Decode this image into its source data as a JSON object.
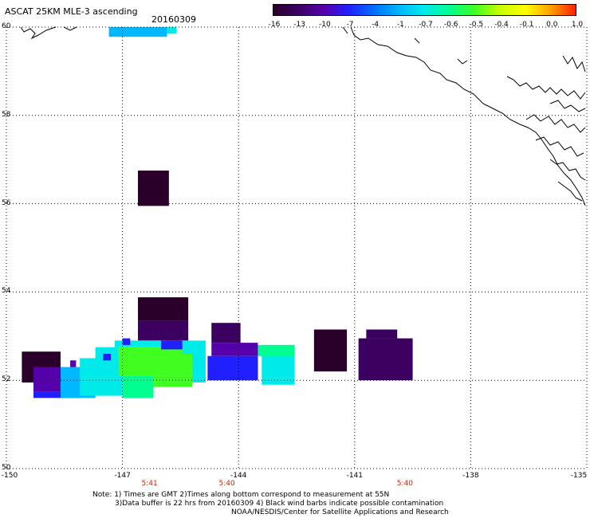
{
  "header": {
    "title": "ASCAT 25KM MLE-3 ascending",
    "date": "20160309"
  },
  "colorbar": {
    "labels": [
      "-16",
      "-13",
      "-10",
      "-7",
      "-4",
      "-1",
      "-0.7",
      "-0.6",
      "-0.5",
      "-0.4",
      "-0.1",
      "0.0",
      "1.0"
    ],
    "colors": [
      "#2a002a",
      "#3c0060",
      "#5500aa",
      "#2020ff",
      "#0070ff",
      "#00b8ff",
      "#00eaea",
      "#00ff90",
      "#40ff20",
      "#c8ff00",
      "#ffff00",
      "#ffa000",
      "#ff2000"
    ]
  },
  "axes": {
    "lat_ticks": [
      "60",
      "58",
      "56",
      "54",
      "52",
      "50"
    ],
    "lon_ticks": [
      "-150",
      "-147",
      "-144",
      "-141",
      "-138",
      "-135"
    ],
    "times": [
      {
        "text": "5:41",
        "lon": -146.3
      },
      {
        "text": "5:40",
        "lon": -144.3
      },
      {
        "text": "5:40",
        "lon": -139.7
      }
    ]
  },
  "notes": {
    "line1": "Note: 1) Times are GMT 2)Times along bottom correspond to measurement at 55N",
    "line2": "3)Data buffer is 22 hrs from 20160309 4) Black wind barbs indicate possible contamination",
    "line3": "NOAA/NESDIS/Center for Satellite Applications and Research"
  },
  "map_data": {
    "extent": {
      "lon_min": -150,
      "lon_max": -135,
      "lat_min": 50,
      "lat_max": 60
    },
    "cells_note": "MLE values per grid cell, coordinates in degrees",
    "cells": [
      {
        "lon0": -147.35,
        "lon1": -145.85,
        "lat0": 59.78,
        "lat1": 60.0,
        "color": "#00b8ff"
      },
      {
        "lon0": -145.85,
        "lon1": -145.6,
        "lat0": 59.85,
        "lat1": 60.0,
        "color": "#00eaea"
      },
      {
        "lon0": -146.6,
        "lon1": -145.8,
        "lat0": 55.95,
        "lat1": 56.75,
        "color": "#2a002a"
      },
      {
        "lon0": -146.6,
        "lon1": -145.3,
        "lat0": 53.35,
        "lat1": 53.88,
        "color": "#2a002a"
      },
      {
        "lon0": -146.6,
        "lon1": -145.3,
        "lat0": 52.9,
        "lat1": 53.35,
        "color": "#3c0060"
      },
      {
        "lon0": -144.7,
        "lon1": -143.95,
        "lat0": 52.85,
        "lat1": 53.3,
        "color": "#3c0060"
      },
      {
        "lon0": -144.7,
        "lon1": -143.5,
        "lat0": 52.55,
        "lat1": 52.85,
        "color": "#5500aa"
      },
      {
        "lon0": -144.8,
        "lon1": -143.5,
        "lat0": 52.0,
        "lat1": 52.55,
        "color": "#2020ff"
      },
      {
        "lon0": -143.4,
        "lon1": -142.55,
        "lat0": 51.9,
        "lat1": 52.8,
        "color": "#00eaea"
      },
      {
        "lon0": -143.5,
        "lon1": -142.55,
        "lat0": 52.55,
        "lat1": 52.8,
        "color": "#00ff90"
      },
      {
        "lon0": -142.05,
        "lon1": -141.2,
        "lat0": 52.2,
        "lat1": 53.15,
        "color": "#2a002a"
      },
      {
        "lon0": -140.9,
        "lon1": -139.5,
        "lat0": 52.0,
        "lat1": 52.95,
        "color": "#3c0060"
      },
      {
        "lon0": -140.7,
        "lon1": -139.9,
        "lat0": 52.95,
        "lat1": 53.15,
        "color": "#3c0060"
      },
      {
        "lon0": -149.6,
        "lon1": -148.6,
        "lat0": 51.95,
        "lat1": 52.65,
        "color": "#2a002a"
      },
      {
        "lon0": -149.3,
        "lon1": -148.6,
        "lat0": 51.75,
        "lat1": 52.3,
        "color": "#5500aa"
      },
      {
        "lon0": -149.3,
        "lon1": -148.1,
        "lat0": 51.6,
        "lat1": 51.75,
        "color": "#2020ff"
      },
      {
        "lon0": -148.6,
        "lon1": -147.7,
        "lat0": 51.6,
        "lat1": 52.3,
        "color": "#00b8ff"
      },
      {
        "lon0": -148.1,
        "lon1": -147.0,
        "lat0": 51.65,
        "lat1": 52.5,
        "color": "#00eaea"
      },
      {
        "lon0": -147.7,
        "lon1": -147.1,
        "lat0": 52.3,
        "lat1": 52.75,
        "color": "#00eaea"
      },
      {
        "lon0": -147.0,
        "lon1": -146.2,
        "lat0": 51.6,
        "lat1": 52.1,
        "color": "#00ff90"
      },
      {
        "lon0": -147.1,
        "lon1": -145.2,
        "lat0": 52.1,
        "lat1": 52.75,
        "color": "#40ff20"
      },
      {
        "lon0": -146.2,
        "lon1": -145.2,
        "lat0": 51.85,
        "lat1": 52.1,
        "color": "#40ff20"
      },
      {
        "lon0": -147.2,
        "lon1": -146.0,
        "lat0": 52.75,
        "lat1": 52.9,
        "color": "#00eaea"
      },
      {
        "lon0": -146.0,
        "lon1": -145.45,
        "lat0": 52.7,
        "lat1": 52.9,
        "color": "#2020ff"
      },
      {
        "lon0": -145.45,
        "lon1": -144.85,
        "lat0": 52.6,
        "lat1": 52.9,
        "color": "#00eaea"
      },
      {
        "lon0": -145.2,
        "lon1": -144.85,
        "lat0": 51.95,
        "lat1": 52.6,
        "color": "#00eaea"
      },
      {
        "lon0": -147.5,
        "lon1": -147.3,
        "lat0": 52.45,
        "lat1": 52.6,
        "color": "#2020ff"
      },
      {
        "lon0": -148.35,
        "lon1": -148.2,
        "lat0": 52.3,
        "lat1": 52.45,
        "color": "#5500aa"
      },
      {
        "lon0": -147.0,
        "lon1": -146.8,
        "lat0": 52.8,
        "lat1": 52.95,
        "color": "#2020ff"
      }
    ]
  }
}
